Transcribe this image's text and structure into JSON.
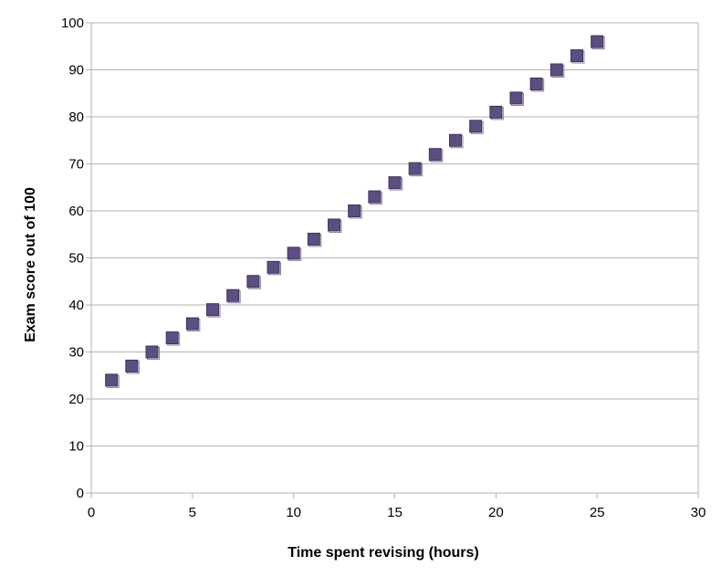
{
  "chart_data": {
    "type": "scatter",
    "title": "",
    "xlabel": "Time spent revising (hours)",
    "ylabel": "Exam score out of 100",
    "xlim": [
      0,
      30
    ],
    "ylim": [
      0,
      100
    ],
    "xticks": [
      0,
      5,
      10,
      15,
      20,
      25,
      30
    ],
    "yticks": [
      0,
      10,
      20,
      30,
      40,
      50,
      60,
      70,
      80,
      90,
      100
    ],
    "grid": "horizontal",
    "legend": "none",
    "marker": "square",
    "marker_color": "#5c4f7f",
    "x": [
      1,
      2,
      3,
      4,
      5,
      6,
      7,
      8,
      9,
      10,
      11,
      12,
      13,
      14,
      15,
      16,
      17,
      18,
      19,
      20,
      21,
      22,
      23,
      24,
      25
    ],
    "y": [
      24,
      27,
      30,
      33,
      36,
      39,
      42,
      45,
      48,
      51,
      54,
      57,
      60,
      63,
      66,
      69,
      72,
      75,
      78,
      81,
      84,
      87,
      90,
      93,
      96
    ]
  }
}
